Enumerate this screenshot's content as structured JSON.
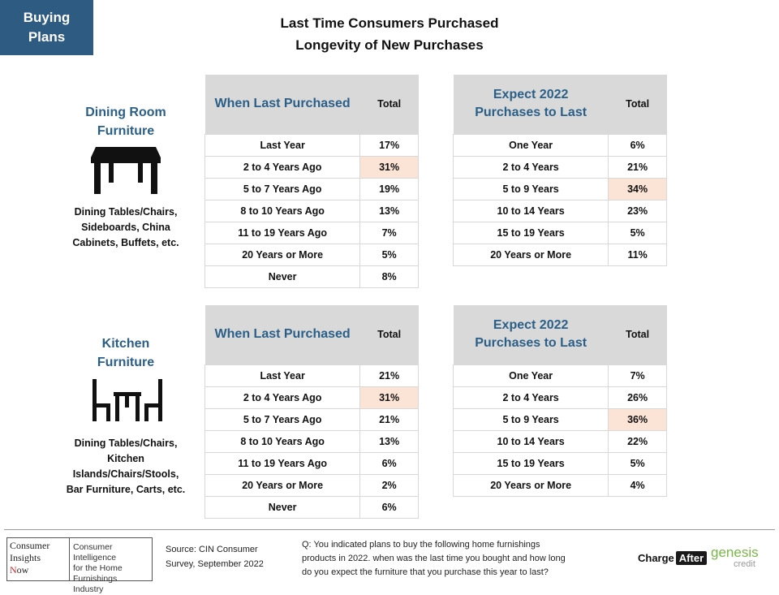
{
  "badge": [
    "Buying",
    "Plans"
  ],
  "title": {
    "line1": "Last Time Consumers Purchased",
    "line2": "Longevity of New Purchases"
  },
  "sections": [
    {
      "title": [
        "Dining Room",
        "Furniture"
      ],
      "icon": "dining-table-icon",
      "description": [
        "Dining Tables/Chairs,",
        "Sideboards, China",
        "Cabinets, Buffets, etc."
      ],
      "last_purchased": {
        "header": "When Last Purchased",
        "total_header": "Total",
        "rows": [
          {
            "label": "Last Year",
            "value": "17%"
          },
          {
            "label": "2 to 4 Years Ago",
            "value": "31%",
            "highlight": true
          },
          {
            "label": "5 to 7 Years Ago",
            "value": "19%"
          },
          {
            "label": "8 to 10 Years Ago",
            "value": "13%"
          },
          {
            "label": "11 to 19 Years Ago",
            "value": "7%"
          },
          {
            "label": "20 Years or More",
            "value": "5%"
          },
          {
            "label": "Never",
            "value": "8%"
          }
        ]
      },
      "expect": {
        "header": [
          "Expect 2022",
          "Purchases to Last"
        ],
        "total_header": "Total",
        "rows": [
          {
            "label": "One Year",
            "value": "6%"
          },
          {
            "label": "2 to 4 Years",
            "value": "21%"
          },
          {
            "label": "5 to 9 Years",
            "value": "34%",
            "highlight": true
          },
          {
            "label": "10 to 14 Years",
            "value": "23%"
          },
          {
            "label": "15 to 19 Years",
            "value": "5%"
          },
          {
            "label": "20 Years or More",
            "value": "11%"
          }
        ]
      }
    },
    {
      "title": [
        "Kitchen",
        "Furniture"
      ],
      "icon": "kitchen-table-chairs-icon",
      "description": [
        "Dining Tables/Chairs,",
        "Kitchen",
        "Islands/Chairs/Stools,",
        "Bar Furniture, Carts, etc."
      ],
      "last_purchased": {
        "header": "When Last Purchased",
        "total_header": "Total",
        "rows": [
          {
            "label": "Last Year",
            "value": "21%"
          },
          {
            "label": "2 to 4 Years Ago",
            "value": "31%",
            "highlight": true
          },
          {
            "label": "5 to 7 Years Ago",
            "value": "21%"
          },
          {
            "label": "8 to 10 Years Ago",
            "value": "13%"
          },
          {
            "label": "11 to 19 Years Ago",
            "value": "6%"
          },
          {
            "label": "20 Years or More",
            "value": "2%"
          },
          {
            "label": "Never",
            "value": "6%"
          }
        ]
      },
      "expect": {
        "header": [
          "Expect 2022",
          "Purchases to Last"
        ],
        "total_header": "Total",
        "rows": [
          {
            "label": "One Year",
            "value": "7%"
          },
          {
            "label": "2 to 4 Years",
            "value": "26%"
          },
          {
            "label": "5 to 9 Years",
            "value": "36%",
            "highlight": true
          },
          {
            "label": "10 to 14 Years",
            "value": "22%"
          },
          {
            "label": "15 to 19 Years",
            "value": "5%"
          },
          {
            "label": "20 Years or More",
            "value": "4%"
          }
        ]
      }
    }
  ],
  "footer": {
    "logo_left": [
      "Consumer",
      "Insights",
      "Now"
    ],
    "logo_right": [
      "Consumer Intelligence",
      "for the Home",
      "Furnishings Industry"
    ],
    "source": [
      "Source: CIN Consumer",
      "Survey, September 2022"
    ],
    "question": [
      "Q: You indicated plans to buy the following home furnishings",
      "products in 2022. when was the last time you bought and how long",
      "do you expect the furniture that you purchase this year to last?"
    ],
    "chargeafter": [
      "Charge",
      "After"
    ],
    "genesis": [
      "genesis",
      "credit"
    ]
  },
  "colors": {
    "badge": "#2d5b82",
    "heading": "#2a5f88",
    "highlight": "#fbe4d5",
    "header_bg": "#d9d9d9"
  }
}
